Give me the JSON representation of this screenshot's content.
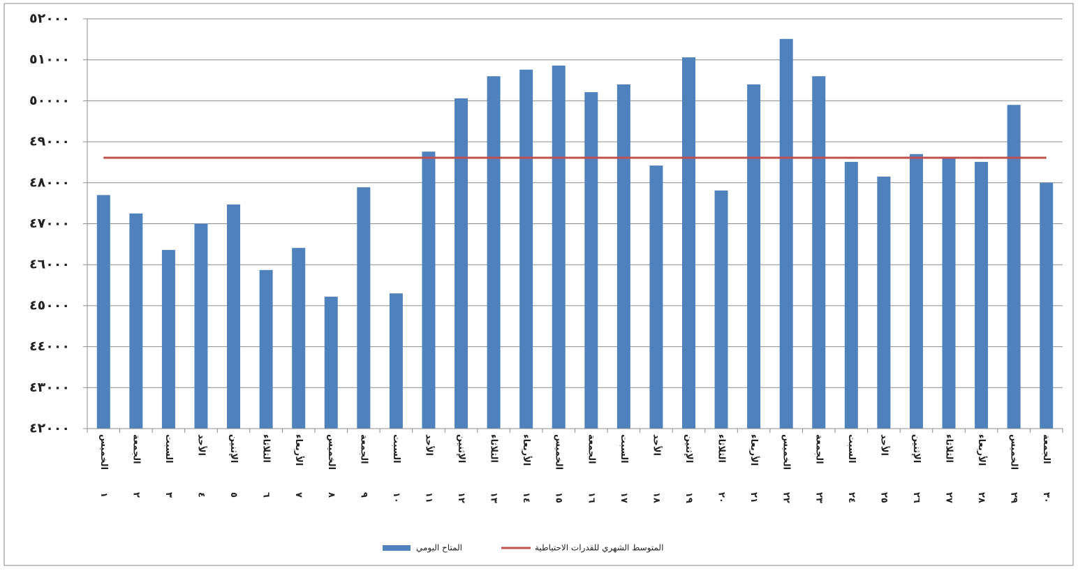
{
  "chart_data": {
    "type": "bar",
    "categories": [
      "الخميس",
      "الجمعة",
      "السبت",
      "الأحد",
      "الإثنين",
      "الثلاثاء",
      "الأربعاء",
      "الخميس",
      "الجمعة",
      "السبت",
      "الأحد",
      "الإثنين",
      "الثلاثاء",
      "الأربعاء",
      "الخميس",
      "الجمعة",
      "السبت",
      "الأحد",
      "الإثنين",
      "الثلاثاء",
      "الأربعاء",
      "الخميس",
      "الجمعة",
      "السبت",
      "الأحد",
      "الإثنين",
      "الثلاثاء",
      "الأربعاء",
      "الخميس",
      "الجمعة"
    ],
    "day_numbers": [
      "١",
      "٢",
      "٣",
      "٤",
      "٥",
      "٦",
      "٧",
      "٨",
      "٩",
      "١٠",
      "١١",
      "١٢",
      "١٣",
      "١٤",
      "١٥",
      "١٦",
      "١٧",
      "١٨",
      "١٩",
      "٢٠",
      "٢١",
      "٢٢",
      "٢٣",
      "٢٤",
      "٢٥",
      "٢٦",
      "٢٧",
      "٢٨",
      "٢٩",
      "٣٠"
    ],
    "series": [
      {
        "name": "المتاح اليومي",
        "type": "bar",
        "color": "#4f81bd",
        "values": [
          47700,
          47250,
          46360,
          47000,
          47470,
          45870,
          46410,
          45220,
          47890,
          45300,
          48760,
          50060,
          50600,
          50760,
          50860,
          50210,
          50400,
          48420,
          51060,
          47810,
          50400,
          51510,
          50600,
          48510,
          48150,
          48700,
          48590,
          48510,
          49900,
          48000
        ]
      },
      {
        "name": "المتوسط الشهري للقدرات الاحتياطية",
        "type": "line",
        "color": "#c0504d",
        "values": [
          48610,
          48610,
          48610,
          48610,
          48610,
          48610,
          48610,
          48610,
          48610,
          48610,
          48610,
          48610,
          48610,
          48610,
          48610,
          48610,
          48610,
          48610,
          48610,
          48610,
          48610,
          48610,
          48610,
          48610,
          48610,
          48610,
          48610,
          48610,
          48610,
          48610
        ]
      }
    ],
    "ylim": [
      42000,
      52000
    ],
    "yticks": [
      {
        "value": 42000,
        "label": "٤٢٠٠٠"
      },
      {
        "value": 43000,
        "label": "٤٣٠٠٠"
      },
      {
        "value": 44000,
        "label": "٤٤٠٠٠"
      },
      {
        "value": 45000,
        "label": "٤٥٠٠٠"
      },
      {
        "value": 46000,
        "label": "٤٦٠٠٠"
      },
      {
        "value": 47000,
        "label": "٤٧٠٠٠"
      },
      {
        "value": 48000,
        "label": "٤٨٠٠٠"
      },
      {
        "value": 49000,
        "label": "٤٩٠٠٠"
      },
      {
        "value": 50000,
        "label": "٥٠٠٠٠"
      },
      {
        "value": 51000,
        "label": "٥١٠٠٠"
      },
      {
        "value": 52000,
        "label": "٥٢٠٠٠"
      }
    ],
    "grid": true
  }
}
